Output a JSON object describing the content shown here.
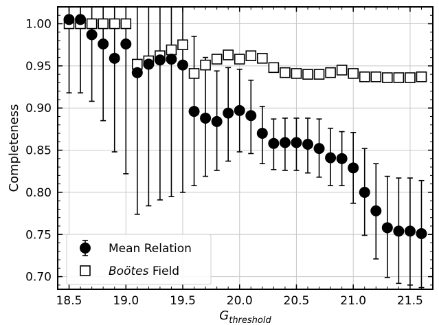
{
  "chart_data": {
    "type": "scatter",
    "title": "",
    "xlabel_main": "G",
    "xlabel_sub": "threshold",
    "ylabel": "Completeness",
    "xlim": [
      18.4,
      21.7
    ],
    "ylim": [
      0.685,
      1.02
    ],
    "xticks": [
      18.5,
      19.0,
      19.5,
      20.0,
      20.5,
      21.0,
      21.5
    ],
    "xtick_labels": [
      "18.5",
      "19.0",
      "19.5",
      "20.0",
      "20.5",
      "21.0",
      "21.5"
    ],
    "yticks": [
      0.7,
      0.75,
      0.8,
      0.85,
      0.9,
      0.95,
      1.0
    ],
    "ytick_labels": [
      "0.70",
      "0.75",
      "0.80",
      "0.85",
      "0.90",
      "0.95",
      "1.00"
    ],
    "grid": true,
    "legend_position": "bottom-left",
    "series": [
      {
        "name": "Mean Relation",
        "marker": "filled-circle-errorbar",
        "color": "#000000",
        "x": [
          18.5,
          18.6,
          18.7,
          18.8,
          18.9,
          19.0,
          19.1,
          19.2,
          19.3,
          19.4,
          19.5,
          19.6,
          19.7,
          19.8,
          19.9,
          20.0,
          20.1,
          20.2,
          20.3,
          20.4,
          20.5,
          20.6,
          20.7,
          20.8,
          20.9,
          21.0,
          21.1,
          21.2,
          21.3,
          21.4,
          21.5,
          21.6
        ],
        "y": [
          1.005,
          1.005,
          0.987,
          0.976,
          0.959,
          0.976,
          0.942,
          0.952,
          0.957,
          0.958,
          0.951,
          0.896,
          0.888,
          0.884,
          0.894,
          0.897,
          0.891,
          0.87,
          0.858,
          0.859,
          0.859,
          0.857,
          0.852,
          0.841,
          0.84,
          0.829,
          0.8,
          0.778,
          0.758,
          0.754,
          0.754,
          0.751
        ],
        "yerr_low": [
          0.918,
          0.918,
          0.908,
          0.885,
          0.848,
          0.822,
          0.774,
          0.784,
          0.791,
          0.795,
          0.8,
          0.808,
          0.819,
          0.826,
          0.837,
          0.848,
          0.846,
          0.834,
          0.827,
          0.826,
          0.826,
          0.823,
          0.818,
          0.808,
          0.808,
          0.787,
          0.749,
          0.721,
          0.699,
          0.692,
          0.69,
          0.687
        ],
        "yerr_high": [
          1.02,
          1.02,
          1.02,
          1.02,
          1.02,
          1.02,
          1.02,
          1.02,
          1.02,
          1.02,
          1.02,
          0.985,
          0.96,
          0.944,
          0.948,
          0.946,
          0.933,
          0.902,
          0.887,
          0.888,
          0.888,
          0.888,
          0.887,
          0.876,
          0.872,
          0.871,
          0.852,
          0.834,
          0.819,
          0.817,
          0.817,
          0.814
        ]
      },
      {
        "name": "Boötes Field",
        "marker": "open-square",
        "color": "#000000",
        "x": [
          18.5,
          18.6,
          18.7,
          18.8,
          18.9,
          19.0,
          19.1,
          19.2,
          19.3,
          19.4,
          19.5,
          19.6,
          19.7,
          19.8,
          19.9,
          20.0,
          20.1,
          20.2,
          20.3,
          20.4,
          20.5,
          20.6,
          20.7,
          20.8,
          20.9,
          21.0,
          21.1,
          21.2,
          21.3,
          21.4,
          21.5,
          21.6
        ],
        "y": [
          1.0,
          1.0,
          1.0,
          1.0,
          1.0,
          1.0,
          0.952,
          0.956,
          0.962,
          0.969,
          0.975,
          0.941,
          0.951,
          0.958,
          0.963,
          0.958,
          0.962,
          0.959,
          0.948,
          0.942,
          0.941,
          0.94,
          0.94,
          0.942,
          0.945,
          0.941,
          0.937,
          0.937,
          0.936,
          0.936,
          0.936,
          0.937
        ]
      }
    ],
    "legend": [
      {
        "label": "Mean Relation",
        "style": "normal"
      },
      {
        "label_italic": "Boötes",
        "label_rest": " Field"
      }
    ]
  }
}
